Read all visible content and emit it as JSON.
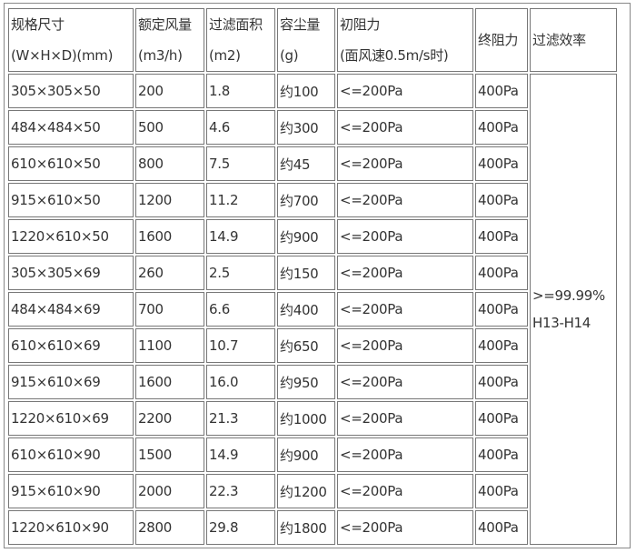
{
  "headers": [
    [
      "规格尺寸",
      "(W×H×D)(mm)"
    ],
    [
      "额定风量",
      "(m3/h)"
    ],
    [
      "过滤面积",
      "(m2)"
    ],
    [
      "容尘量",
      "(g)"
    ],
    [
      "初阻力",
      "(面风速0.5m/s时)"
    ],
    [
      "终阻力"
    ],
    [
      "过滤效率"
    ]
  ],
  "rows": [
    [
      "305×305×50",
      "200",
      "1.8",
      "约100",
      "<=200Pa",
      "400Pa"
    ],
    [
      "484×484×50",
      "500",
      "4.6",
      "约300",
      "<=200Pa",
      "400Pa"
    ],
    [
      "610×610×50",
      "800",
      "7.5",
      "约45",
      "<=200Pa",
      "400Pa"
    ],
    [
      "915×610×50",
      "1200",
      "11.2",
      "约700",
      "<=200Pa",
      "400Pa"
    ],
    [
      "1220×610×50",
      "1600",
      "14.9",
      "约900",
      "<=200Pa",
      "400Pa"
    ],
    [
      "305×305×69",
      "260",
      "2.5",
      "约150",
      "<=200Pa",
      "400Pa"
    ],
    [
      "484×484×69",
      "700",
      "6.6",
      "约400",
      "<=200Pa",
      "400Pa"
    ],
    [
      "610×610×69",
      "1100",
      "10.7",
      "约650",
      "<=200Pa",
      "400Pa"
    ],
    [
      "915×610×69",
      "1600",
      "16.0",
      "约950",
      "<=200Pa",
      "400Pa"
    ],
    [
      "1220×610×69",
      "2200",
      "21.3",
      "约1000",
      "<=200Pa",
      "400Pa"
    ],
    [
      "610×610×90",
      "1500",
      "14.9",
      "约900",
      "<=200Pa",
      "400Pa"
    ],
    [
      "915×610×90",
      "2000",
      "22.3",
      "约1200",
      "<=200Pa",
      "400Pa"
    ],
    [
      "1220×610×90",
      "2800",
      "29.8",
      "约1800",
      "<=200Pa",
      "400Pa"
    ]
  ],
  "efficiency": [
    ">=99.99%",
    "H13-H14"
  ]
}
